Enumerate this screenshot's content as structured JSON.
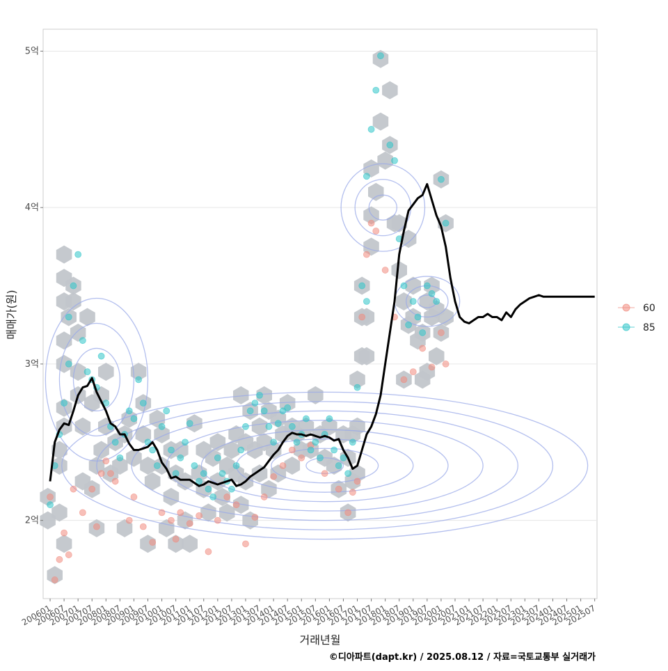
{
  "chart_data": {
    "type": "scatter",
    "title": "",
    "xlabel": "거래년월",
    "ylabel": "매매가(원)",
    "credit": "©디아파트(dapt.kr) / 2025.08.12 / 자료=국토교통부 실거래가",
    "x_tick_labels": [
      "200601",
      "200607",
      "200701",
      "200707",
      "200801",
      "200807",
      "200901",
      "200907",
      "201001",
      "201007",
      "201101",
      "201107",
      "201201",
      "201207",
      "201301",
      "201307",
      "201401",
      "201407",
      "201501",
      "201507",
      "201601",
      "201607",
      "201701",
      "201707",
      "201801",
      "201807",
      "201901",
      "201907",
      "202001",
      "202007",
      "202101",
      "202107",
      "202201",
      "202207",
      "202301",
      "202307",
      "202401",
      "202407",
      "202501",
      "202507"
    ],
    "x_range_months": [
      -3,
      235
    ],
    "y_tick_labels": [
      "2억",
      "3억",
      "4억",
      "5억"
    ],
    "y_tick_values": [
      2.0,
      3.0,
      4.0,
      5.0
    ],
    "ylim": [
      1.5,
      5.14
    ],
    "legend": {
      "position": "right",
      "entries": [
        {
          "name": "60",
          "color": "#f08a7e"
        },
        {
          "name": "85",
          "color": "#2dc4c8"
        }
      ]
    },
    "colors": {
      "series_60": "#f08a7e",
      "series_85": "#2dc4c8",
      "hex": "#c2c6cb",
      "contour": "#98a8e8",
      "trend": "#000000",
      "grid": "#e6e6e6",
      "panel_border": "#cccccc"
    },
    "trend_line": {
      "name": "moving average",
      "x": [
        0,
        2,
        4,
        6,
        8,
        10,
        12,
        14,
        16,
        18,
        20,
        22,
        24,
        26,
        28,
        30,
        32,
        34,
        36,
        38,
        40,
        42,
        44,
        46,
        48,
        50,
        52,
        54,
        56,
        58,
        60,
        62,
        64,
        66,
        68,
        70,
        72,
        74,
        76,
        78,
        80,
        82,
        84,
        86,
        88,
        90,
        92,
        94,
        96,
        98,
        100,
        102,
        104,
        106,
        108,
        110,
        112,
        114,
        116,
        118,
        120,
        122,
        124,
        126,
        128,
        130,
        132,
        134,
        136,
        138,
        140,
        142,
        144,
        146,
        148,
        150,
        152,
        154,
        156,
        158,
        160,
        162,
        164,
        166,
        168,
        170,
        172,
        174,
        176,
        178,
        180,
        182,
        184,
        186,
        188,
        190,
        192,
        194,
        196,
        198,
        200,
        202,
        204,
        206,
        208,
        210,
        212,
        214,
        216,
        218,
        220,
        222,
        224,
        226,
        228,
        230,
        232,
        234
      ],
      "y": [
        2.25,
        2.5,
        2.58,
        2.62,
        2.61,
        2.7,
        2.8,
        2.85,
        2.86,
        2.91,
        2.82,
        2.76,
        2.7,
        2.62,
        2.6,
        2.55,
        2.55,
        2.49,
        2.45,
        2.45,
        2.46,
        2.47,
        2.5,
        2.45,
        2.37,
        2.33,
        2.27,
        2.28,
        2.26,
        2.26,
        2.26,
        2.24,
        2.22,
        2.23,
        2.25,
        2.24,
        2.23,
        2.24,
        2.25,
        2.26,
        2.22,
        2.23,
        2.25,
        2.28,
        2.3,
        2.32,
        2.34,
        2.38,
        2.42,
        2.45,
        2.5,
        2.54,
        2.56,
        2.55,
        2.55,
        2.54,
        2.55,
        2.54,
        2.53,
        2.54,
        2.53,
        2.51,
        2.52,
        2.45,
        2.4,
        2.33,
        2.35,
        2.45,
        2.55,
        2.6,
        2.68,
        2.8,
        3.0,
        3.2,
        3.4,
        3.7,
        3.85,
        3.98,
        4.02,
        4.06,
        4.08,
        4.15,
        4.05,
        3.95,
        3.88,
        3.75,
        3.55,
        3.4,
        3.3,
        3.27,
        3.26,
        3.28,
        3.3,
        3.3,
        3.32,
        3.3,
        3.3,
        3.28,
        3.33,
        3.3,
        3.35,
        3.38,
        3.4,
        3.42,
        3.43,
        3.44,
        3.43,
        3.43,
        3.43,
        3.43,
        3.43,
        3.43,
        3.43,
        3.43,
        3.43,
        3.43,
        3.43,
        3.43
      ]
    },
    "series": [
      {
        "name": "60",
        "points": [
          [
            0,
            2.15
          ],
          [
            2,
            1.62
          ],
          [
            4,
            1.75
          ],
          [
            6,
            1.92
          ],
          [
            8,
            1.78
          ],
          [
            10,
            2.2
          ],
          [
            14,
            2.05
          ],
          [
            18,
            2.2
          ],
          [
            20,
            1.96
          ],
          [
            22,
            2.3
          ],
          [
            24,
            2.38
          ],
          [
            26,
            2.3
          ],
          [
            28,
            2.25
          ],
          [
            34,
            2.0
          ],
          [
            36,
            2.15
          ],
          [
            40,
            1.96
          ],
          [
            44,
            1.86
          ],
          [
            48,
            2.05
          ],
          [
            52,
            2.0
          ],
          [
            54,
            1.88
          ],
          [
            56,
            2.05
          ],
          [
            60,
            1.98
          ],
          [
            64,
            2.03
          ],
          [
            68,
            1.8
          ],
          [
            72,
            2.0
          ],
          [
            76,
            2.15
          ],
          [
            80,
            2.1
          ],
          [
            84,
            1.85
          ],
          [
            88,
            2.02
          ],
          [
            92,
            2.15
          ],
          [
            96,
            2.28
          ],
          [
            100,
            2.35
          ],
          [
            104,
            2.45
          ],
          [
            108,
            2.4
          ],
          [
            112,
            2.48
          ],
          [
            118,
            2.3
          ],
          [
            124,
            2.2
          ],
          [
            128,
            2.05
          ],
          [
            130,
            2.18
          ],
          [
            132,
            2.25
          ],
          [
            134,
            3.3
          ],
          [
            136,
            3.7
          ],
          [
            138,
            3.9
          ],
          [
            140,
            3.85
          ],
          [
            144,
            3.6
          ],
          [
            148,
            3.3
          ],
          [
            152,
            2.9
          ],
          [
            156,
            2.95
          ],
          [
            160,
            3.1
          ],
          [
            164,
            2.98
          ],
          [
            168,
            3.2
          ],
          [
            170,
            3.0
          ]
        ]
      },
      {
        "name": "85",
        "points": [
          [
            0,
            2.1
          ],
          [
            2,
            2.35
          ],
          [
            4,
            2.55
          ],
          [
            6,
            2.75
          ],
          [
            8,
            3.0
          ],
          [
            8,
            3.3
          ],
          [
            10,
            3.5
          ],
          [
            12,
            3.7
          ],
          [
            14,
            3.15
          ],
          [
            16,
            2.95
          ],
          [
            18,
            2.9
          ],
          [
            20,
            2.85
          ],
          [
            22,
            3.05
          ],
          [
            24,
            2.75
          ],
          [
            26,
            2.6
          ],
          [
            28,
            2.5
          ],
          [
            30,
            2.4
          ],
          [
            32,
            2.55
          ],
          [
            34,
            2.7
          ],
          [
            36,
            2.65
          ],
          [
            38,
            2.9
          ],
          [
            40,
            2.75
          ],
          [
            42,
            2.5
          ],
          [
            44,
            2.45
          ],
          [
            46,
            2.35
          ],
          [
            48,
            2.6
          ],
          [
            50,
            2.7
          ],
          [
            52,
            2.45
          ],
          [
            54,
            2.3
          ],
          [
            56,
            2.4
          ],
          [
            58,
            2.5
          ],
          [
            60,
            2.62
          ],
          [
            62,
            2.35
          ],
          [
            64,
            2.25
          ],
          [
            66,
            2.3
          ],
          [
            68,
            2.2
          ],
          [
            70,
            2.15
          ],
          [
            72,
            2.4
          ],
          [
            74,
            2.3
          ],
          [
            76,
            2.25
          ],
          [
            78,
            2.2
          ],
          [
            80,
            2.35
          ],
          [
            82,
            2.45
          ],
          [
            84,
            2.6
          ],
          [
            86,
            2.7
          ],
          [
            88,
            2.75
          ],
          [
            90,
            2.8
          ],
          [
            92,
            2.7
          ],
          [
            94,
            2.6
          ],
          [
            96,
            2.5
          ],
          [
            98,
            2.62
          ],
          [
            100,
            2.7
          ],
          [
            102,
            2.72
          ],
          [
            104,
            2.6
          ],
          [
            106,
            2.5
          ],
          [
            108,
            2.55
          ],
          [
            110,
            2.65
          ],
          [
            112,
            2.45
          ],
          [
            114,
            2.5
          ],
          [
            116,
            2.4
          ],
          [
            118,
            2.55
          ],
          [
            120,
            2.65
          ],
          [
            122,
            2.45
          ],
          [
            124,
            2.35
          ],
          [
            126,
            2.4
          ],
          [
            128,
            2.3
          ],
          [
            130,
            2.5
          ],
          [
            132,
            2.85
          ],
          [
            134,
            3.5
          ],
          [
            136,
            3.4
          ],
          [
            136,
            4.2
          ],
          [
            138,
            4.5
          ],
          [
            140,
            4.75
          ],
          [
            142,
            4.97
          ],
          [
            146,
            4.4
          ],
          [
            148,
            4.3
          ],
          [
            150,
            3.8
          ],
          [
            152,
            3.5
          ],
          [
            154,
            3.25
          ],
          [
            156,
            3.4
          ],
          [
            158,
            3.3
          ],
          [
            160,
            3.2
          ],
          [
            162,
            3.5
          ],
          [
            164,
            3.45
          ],
          [
            166,
            3.4
          ],
          [
            168,
            4.18
          ],
          [
            170,
            3.9
          ]
        ]
      }
    ],
    "hex_bins": [
      [
        -1,
        2.0
      ],
      [
        -1,
        2.15
      ],
      [
        2,
        1.65
      ],
      [
        4,
        2.05
      ],
      [
        4,
        2.35
      ],
      [
        4,
        2.45
      ],
      [
        6,
        1.85
      ],
      [
        6,
        2.6
      ],
      [
        6,
        2.72
      ],
      [
        6,
        3.0
      ],
      [
        6,
        3.15
      ],
      [
        6,
        3.4
      ],
      [
        6,
        3.55
      ],
      [
        6,
        3.7
      ],
      [
        8,
        3.3
      ],
      [
        10,
        3.4
      ],
      [
        10,
        3.5
      ],
      [
        12,
        3.2
      ],
      [
        12,
        2.95
      ],
      [
        12,
        2.8
      ],
      [
        14,
        2.6
      ],
      [
        14,
        2.25
      ],
      [
        16,
        3.3
      ],
      [
        18,
        2.2
      ],
      [
        18,
        2.75
      ],
      [
        20,
        1.95
      ],
      [
        20,
        2.35
      ],
      [
        22,
        2.45
      ],
      [
        22,
        2.8
      ],
      [
        24,
        2.6
      ],
      [
        24,
        2.95
      ],
      [
        26,
        2.3
      ],
      [
        28,
        2.5
      ],
      [
        30,
        2.35
      ],
      [
        32,
        1.95
      ],
      [
        32,
        2.55
      ],
      [
        34,
        2.65
      ],
      [
        36,
        2.4
      ],
      [
        38,
        2.95
      ],
      [
        40,
        2.75
      ],
      [
        40,
        2.55
      ],
      [
        42,
        1.85
      ],
      [
        42,
        2.35
      ],
      [
        44,
        2.25
      ],
      [
        46,
        2.65
      ],
      [
        48,
        2.55
      ],
      [
        48,
        2.35
      ],
      [
        50,
        1.95
      ],
      [
        52,
        2.15
      ],
      [
        52,
        2.45
      ],
      [
        54,
        1.85
      ],
      [
        54,
        2.3
      ],
      [
        56,
        2.45
      ],
      [
        58,
        2.25
      ],
      [
        58,
        2.0
      ],
      [
        60,
        1.85
      ],
      [
        62,
        2.62
      ],
      [
        64,
        2.3
      ],
      [
        66,
        2.45
      ],
      [
        66,
        2.2
      ],
      [
        68,
        2.05
      ],
      [
        70,
        2.4
      ],
      [
        72,
        2.5
      ],
      [
        72,
        2.25
      ],
      [
        74,
        2.15
      ],
      [
        76,
        2.35
      ],
      [
        76,
        2.05
      ],
      [
        78,
        2.45
      ],
      [
        80,
        2.3
      ],
      [
        80,
        2.55
      ],
      [
        82,
        2.1
      ],
      [
        82,
        2.8
      ],
      [
        84,
        2.5
      ],
      [
        84,
        2.25
      ],
      [
        86,
        2.7
      ],
      [
        86,
        2.0
      ],
      [
        88,
        2.45
      ],
      [
        90,
        2.6
      ],
      [
        90,
        2.3
      ],
      [
        92,
        2.8
      ],
      [
        92,
        2.5
      ],
      [
        94,
        2.7
      ],
      [
        94,
        2.2
      ],
      [
        96,
        2.45
      ],
      [
        98,
        2.65
      ],
      [
        98,
        2.3
      ],
      [
        100,
        2.55
      ],
      [
        102,
        2.75
      ],
      [
        104,
        2.6
      ],
      [
        104,
        2.35
      ],
      [
        106,
        2.55
      ],
      [
        108,
        2.45
      ],
      [
        110,
        2.6
      ],
      [
        112,
        2.45
      ],
      [
        114,
        2.8
      ],
      [
        116,
        2.55
      ],
      [
        118,
        2.4
      ],
      [
        120,
        2.6
      ],
      [
        122,
        2.35
      ],
      [
        124,
        2.2
      ],
      [
        126,
        2.55
      ],
      [
        128,
        2.4
      ],
      [
        128,
        2.05
      ],
      [
        130,
        2.25
      ],
      [
        130,
        2.55
      ],
      [
        132,
        2.3
      ],
      [
        132,
        2.6
      ],
      [
        132,
        2.9
      ],
      [
        134,
        3.05
      ],
      [
        134,
        3.3
      ],
      [
        134,
        3.5
      ],
      [
        136,
        3.3
      ],
      [
        136,
        3.05
      ],
      [
        138,
        3.75
      ],
      [
        138,
        3.95
      ],
      [
        138,
        4.25
      ],
      [
        140,
        4.1
      ],
      [
        142,
        4.55
      ],
      [
        142,
        4.95
      ],
      [
        144,
        4.3
      ],
      [
        146,
        4.4
      ],
      [
        146,
        4.75
      ],
      [
        148,
        3.9
      ],
      [
        150,
        3.6
      ],
      [
        150,
        3.9
      ],
      [
        152,
        3.4
      ],
      [
        152,
        2.9
      ],
      [
        154,
        3.8
      ],
      [
        154,
        3.25
      ],
      [
        156,
        3.5
      ],
      [
        156,
        3.3
      ],
      [
        158,
        3.15
      ],
      [
        160,
        2.9
      ],
      [
        160,
        3.2
      ],
      [
        162,
        3.4
      ],
      [
        162,
        2.95
      ],
      [
        164,
        3.5
      ],
      [
        164,
        3.3
      ],
      [
        166,
        3.05
      ],
      [
        166,
        3.35
      ],
      [
        168,
        4.18
      ],
      [
        168,
        3.2
      ],
      [
        170,
        3.9
      ],
      [
        170,
        3.3
      ]
    ],
    "contours": {
      "levels": 10,
      "note": "density contour rings"
    }
  }
}
